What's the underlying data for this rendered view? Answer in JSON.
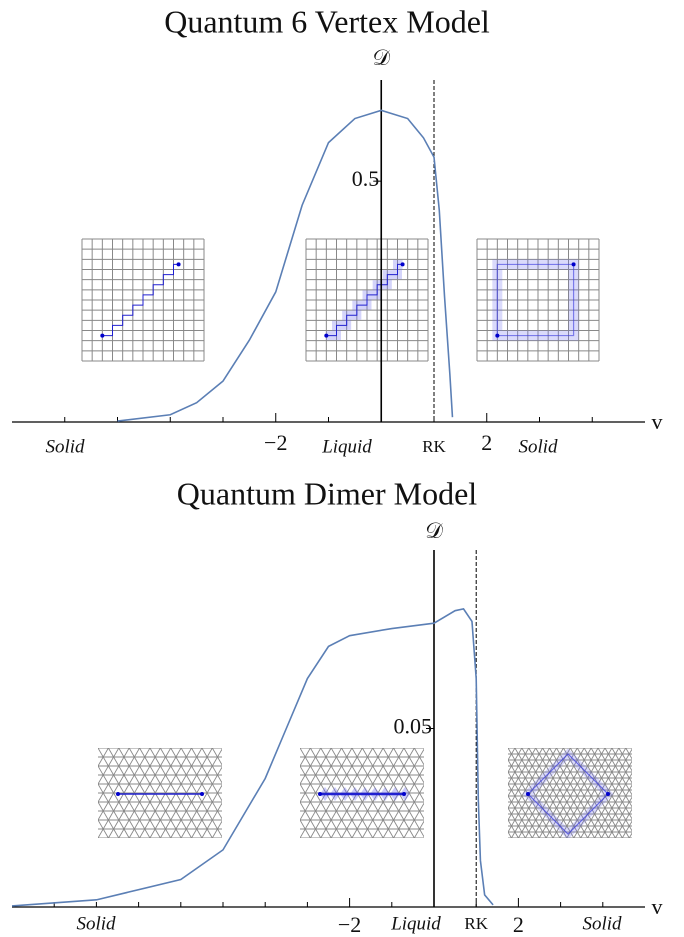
{
  "chart_data": [
    {
      "type": "line",
      "title": "Quantum 6 Vertex Model",
      "x_label": "v",
      "y_label": "𝒟",
      "x": [
        -5,
        -4,
        -3.5,
        -3,
        -2.5,
        -2,
        -1.5,
        -1,
        -0.5,
        0,
        0.5,
        0.8,
        1,
        1.1,
        1.2,
        1.3,
        1.35
      ],
      "values": [
        0.002,
        0.015,
        0.04,
        0.085,
        0.17,
        0.27,
        0.45,
        0.58,
        0.63,
        0.647,
        0.63,
        0.59,
        0.55,
        0.44,
        0.26,
        0.1,
        0.01
      ],
      "color": "#5b7fb5",
      "xlim": [
        -7,
        5
      ],
      "ylim": [
        0,
        0.71
      ],
      "xticks": [
        {
          "value": -2,
          "label": "−2"
        },
        2
      ],
      "xminorticks": [
        -6,
        -5,
        -4,
        -3,
        -1,
        1,
        3,
        4
      ],
      "yticks": [
        0.5
      ],
      "marker_line": {
        "value": 1,
        "label": "RK"
      },
      "annotations": [
        "Solid",
        "Liquid",
        "Solid"
      ]
    },
    {
      "type": "line",
      "title": "Quantum Dimer Model",
      "x_label": "v",
      "y_label": "𝒟",
      "x": [
        -10,
        -8,
        -6,
        -5,
        -4,
        -3.5,
        -3,
        -2.5,
        -2,
        -1,
        0,
        0.5,
        0.7,
        0.9,
        1,
        1.05,
        1.1,
        1.2,
        1.4
      ],
      "values": [
        0.0003,
        0.002,
        0.0077,
        0.016,
        0.036,
        0.05,
        0.064,
        0.073,
        0.076,
        0.078,
        0.0795,
        0.083,
        0.0835,
        0.08,
        0.064,
        0.03,
        0.013,
        0.0034,
        0.0006
      ],
      "color": "#5b7fb5",
      "xlim": [
        -10,
        5
      ],
      "ylim": [
        0,
        0.1
      ],
      "xticks": [
        {
          "value": -2,
          "label": "−2"
        },
        2
      ],
      "xminorticks": [
        -9,
        -8,
        -7,
        -6,
        -5,
        -4,
        -3,
        -1,
        1,
        3,
        4
      ],
      "yticks": [
        0.05
      ],
      "marker_line": {
        "value": 1,
        "label": "RK"
      },
      "annotations": [
        "Solid",
        "Liquid",
        "Solid"
      ]
    }
  ]
}
